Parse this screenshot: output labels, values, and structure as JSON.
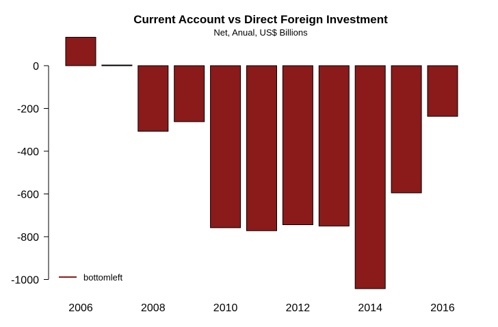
{
  "chart_data": {
    "type": "bar",
    "title": "Current Account vs Direct Foreign Investment",
    "subtitle": "Net, Anual, US$ Billions",
    "xlabel": "",
    "ylabel": "",
    "categories": [
      "2006",
      "2007",
      "2008",
      "2009",
      "2010",
      "2011",
      "2012",
      "2013",
      "2014",
      "2015",
      "2016"
    ],
    "series": [
      {
        "name": "bottomleft",
        "values": [
          133,
          3,
          -307,
          -262,
          -758,
          -772,
          -744,
          -750,
          -1043,
          -595,
          -237
        ]
      }
    ],
    "x_tick_labels": [
      "2006",
      "2008",
      "2010",
      "2012",
      "2014",
      "2016"
    ],
    "y_ticks": [
      0,
      -200,
      -400,
      -600,
      -800,
      -1000
    ],
    "y_tick_labels": [
      "0",
      "-200",
      "-400",
      "-600",
      "-800",
      "-1000"
    ],
    "ylim": [
      -1000,
      100
    ],
    "grid": false,
    "legend_position": "bottom-left",
    "bar_color": "#8b1a1a"
  }
}
